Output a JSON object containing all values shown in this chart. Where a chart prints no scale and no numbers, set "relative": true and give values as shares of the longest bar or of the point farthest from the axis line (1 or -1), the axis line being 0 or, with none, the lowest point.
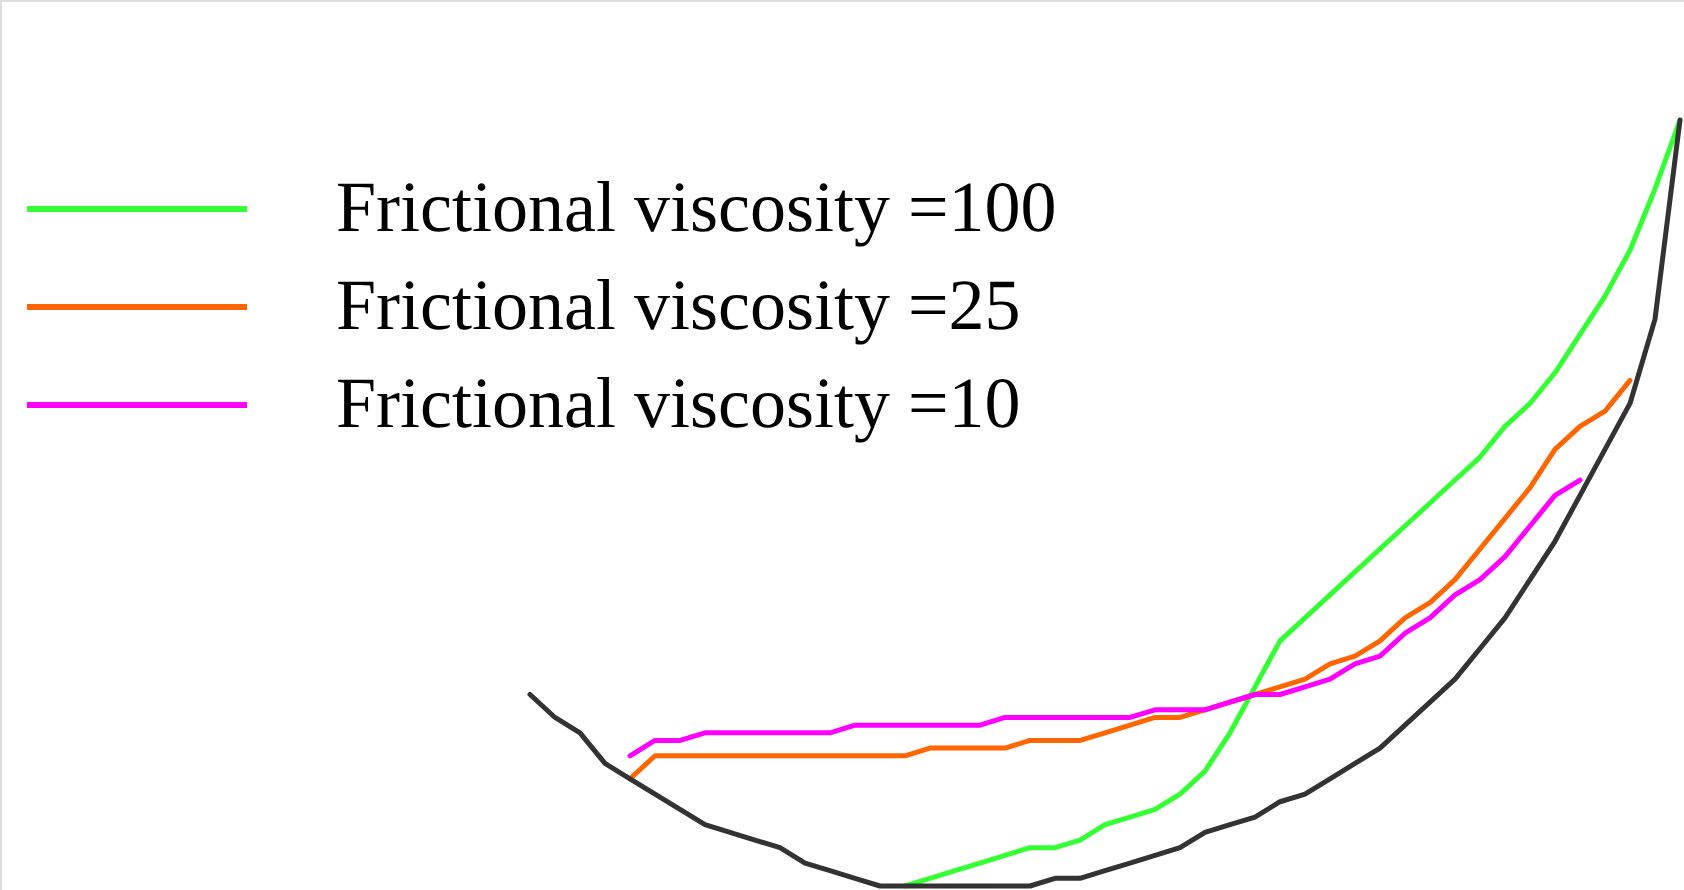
{
  "chart_data": {
    "type": "line",
    "relative": true,
    "legend": "top left",
    "categories": [
      null,
      null,
      null,
      null,
      null,
      null,
      null,
      null,
      null,
      null,
      null,
      null,
      null,
      null,
      null,
      null,
      null,
      null,
      null,
      null,
      null,
      null,
      null,
      null,
      null,
      null,
      null,
      null,
      null,
      null,
      null,
      null,
      null,
      null,
      null,
      null,
      null,
      null,
      null,
      null,
      null,
      null,
      null,
      null,
      null,
      null,
      null
    ],
    "series": [
      {
        "name": "Frictional viscosity =100",
        "color": "#33ff33",
        "values": [
          null,
          null,
          null,
          null,
          null,
          null,
          null,
          null,
          null,
          null,
          null,
          null,
          null,
          null,
          null,
          0.0,
          0.01,
          0.02,
          0.03,
          0.04,
          0.05,
          0.05,
          0.06,
          0.08,
          0.09,
          0.1,
          0.12,
          0.15,
          0.2,
          0.26,
          0.32,
          0.35,
          0.38,
          0.41,
          0.44,
          0.47,
          0.5,
          0.53,
          0.56,
          0.6,
          0.63,
          0.67,
          0.72,
          0.77,
          0.83,
          0.91,
          1.0
        ]
      },
      {
        "name": "Frictional viscosity =25",
        "color": "#ff6600",
        "values": [
          null,
          null,
          null,
          null,
          0.14,
          0.17,
          0.17,
          0.17,
          0.17,
          0.17,
          0.17,
          0.17,
          0.17,
          0.17,
          0.17,
          0.17,
          0.18,
          0.18,
          0.18,
          0.18,
          0.19,
          0.19,
          0.19,
          0.2,
          0.21,
          0.22,
          0.22,
          0.23,
          0.24,
          0.25,
          0.26,
          0.27,
          0.29,
          0.3,
          0.32,
          0.35,
          0.37,
          0.4,
          0.44,
          0.48,
          0.52,
          0.57,
          0.6,
          0.62,
          0.66,
          null,
          null
        ]
      },
      {
        "name": "Frictional viscosity =10",
        "color": "#ff00ff",
        "values": [
          null,
          null,
          null,
          null,
          0.17,
          0.19,
          0.19,
          0.2,
          0.2,
          0.2,
          0.2,
          0.2,
          0.2,
          0.21,
          0.21,
          0.21,
          0.21,
          0.21,
          0.21,
          0.22,
          0.22,
          0.22,
          0.22,
          0.22,
          0.22,
          0.23,
          0.23,
          0.23,
          0.24,
          0.25,
          0.25,
          0.26,
          0.27,
          0.29,
          0.3,
          0.33,
          0.35,
          0.38,
          0.4,
          0.43,
          0.47,
          0.51,
          0.53,
          null,
          null,
          null,
          null
        ]
      },
      {
        "color": "#333333",
        "values": [
          0.25,
          0.22,
          0.2,
          0.16,
          0.14,
          0.12,
          0.1,
          0.08,
          0.07,
          0.06,
          0.05,
          0.03,
          0.02,
          0.01,
          0.0,
          0.0,
          0.0,
          0.0,
          0.0,
          0.0,
          0.0,
          0.01,
          0.01,
          0.02,
          0.03,
          0.04,
          0.05,
          0.07,
          0.08,
          0.09,
          0.11,
          0.12,
          0.14,
          0.16,
          0.18,
          0.21,
          0.24,
          0.27,
          0.31,
          0.35,
          0.4,
          0.45,
          0.51,
          0.57,
          0.63,
          0.74,
          1.0
        ]
      }
    ]
  }
}
